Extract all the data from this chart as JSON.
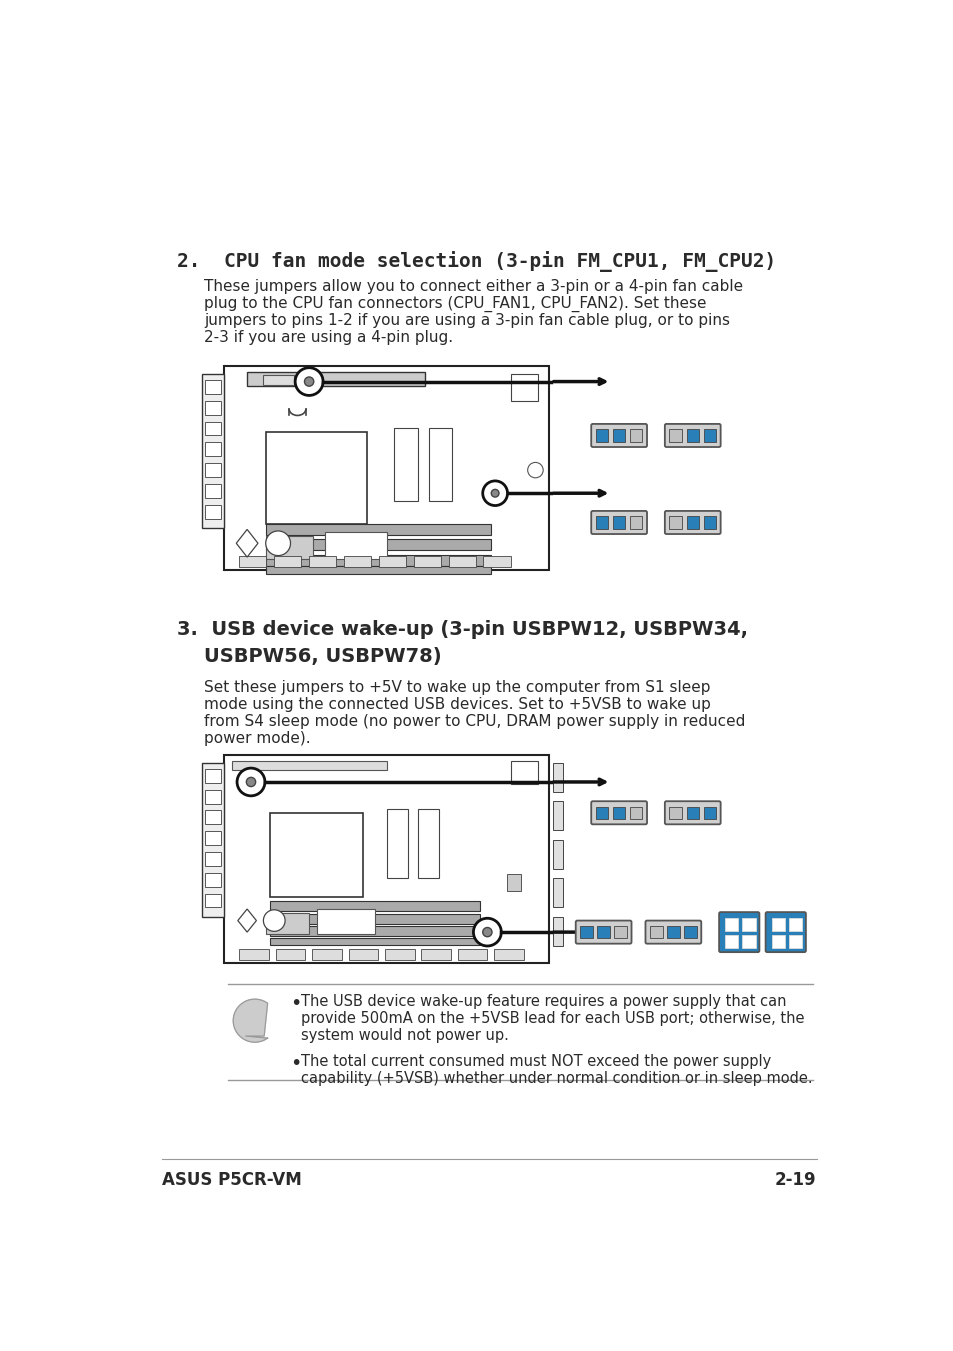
{
  "bg_color": "#ffffff",
  "text_color": "#2a2a2a",
  "blue_color": "#2980b9",
  "dark_color": "#111111",
  "gray_color": "#555555",
  "section2_title": "2.  CPU fan mode selection (3-pin FM_CPU1, FM_CPU2)",
  "section2_body_lines": [
    "These jumpers allow you to connect either a 3-pin or a 4-pin fan cable",
    "plug to the CPU fan connectors (CPU_FAN1, CPU_FAN2). Set these",
    "jumpers to pins 1-2 if you are using a 3-pin fan cable plug, or to pins",
    "2-3 if you are using a 4-pin plug."
  ],
  "section3_title_line1": "3.  USB device wake-up (3-pin USBPW12, USBPW34,",
  "section3_title_line2": "    USBPW56, USBPW78)",
  "section3_body_lines": [
    "Set these jumpers to +5V to wake up the computer from S1 sleep",
    "mode using the connected USB devices. Set to +5VSB to wake up",
    "from S4 sleep mode (no power to CPU, DRAM power supply in reduced",
    "power mode)."
  ],
  "note_bullet1_lines": [
    "The USB device wake-up feature requires a power supply that can",
    "provide 500mA on the +5VSB lead for each USB port; otherwise, the",
    "system would not power up."
  ],
  "note_bullet2_lines": [
    "The total current consumed must NOT exceed the power supply",
    "capability (+5VSB) whether under normal condition or in sleep mode."
  ],
  "footer_left": "ASUS P5CR-VM",
  "footer_right": "2-19"
}
